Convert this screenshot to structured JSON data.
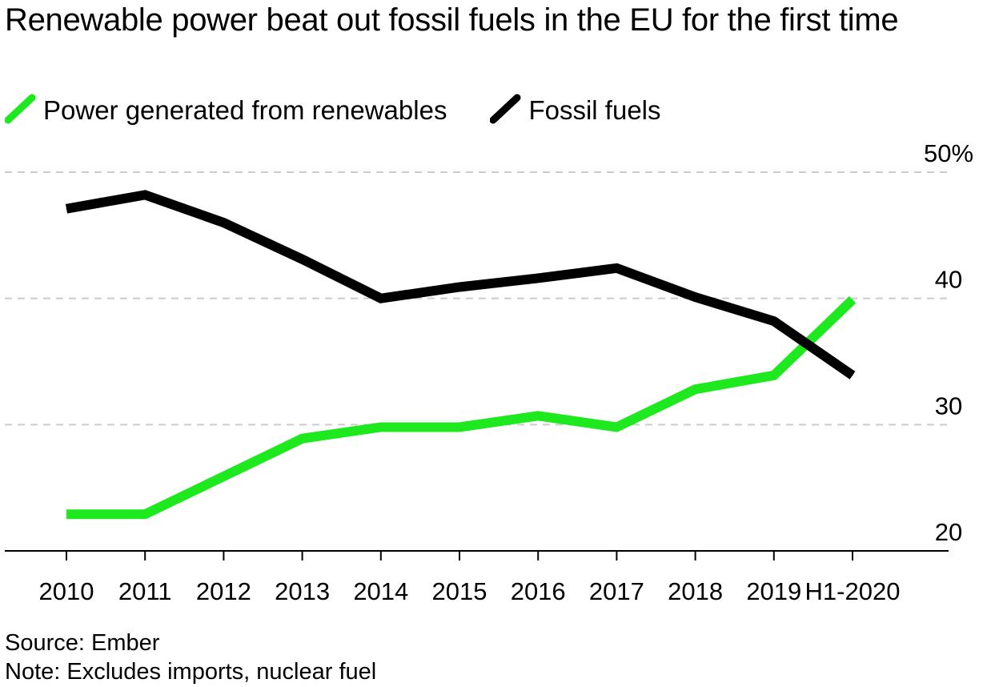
{
  "title": "Renewable power beat out fossil fuels in the EU for the first time",
  "legend": {
    "renewables": "Power generated from renewables",
    "fossil": "Fossil fuels"
  },
  "source": "Source: Ember",
  "note": "Note: Excludes imports, nuclear fuel",
  "colors": {
    "renewables": "#1ee81e",
    "fossil": "#000000",
    "grid": "#cccccc",
    "axis": "#000000"
  },
  "chart_data": {
    "type": "line",
    "title": "Renewable power beat out fossil fuels in the EU for the first time",
    "xlabel": "",
    "ylabel": "",
    "categories": [
      "2010",
      "2011",
      "2012",
      "2013",
      "2014",
      "2015",
      "2016",
      "2017",
      "2018",
      "2019",
      "H1-2020"
    ],
    "ylim": [
      20,
      50
    ],
    "yticks": [
      20,
      30,
      40,
      50
    ],
    "ytick_labels": [
      "20",
      "30",
      "40",
      "50%"
    ],
    "grid": true,
    "legend_position": "top-left",
    "series": [
      {
        "name": "Power generated from renewables",
        "color": "#1ee81e",
        "values": [
          22.9,
          22.9,
          25.9,
          28.9,
          29.8,
          29.8,
          30.7,
          29.8,
          32.8,
          33.9,
          39.9
        ]
      },
      {
        "name": "Fossil fuels",
        "color": "#000000",
        "values": [
          47.1,
          48.2,
          46.0,
          43.1,
          40.0,
          40.9,
          41.6,
          42.4,
          40.1,
          38.2,
          33.9
        ]
      }
    ]
  }
}
